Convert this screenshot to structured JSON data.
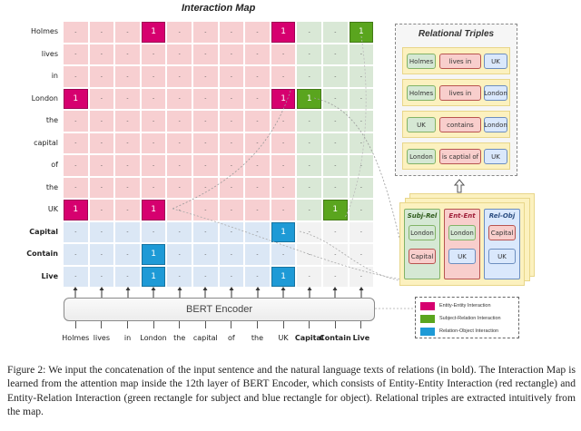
{
  "interaction_map": {
    "title": "Interaction Map",
    "row_labels": [
      "Holmes",
      "lives",
      "in",
      "London",
      "the",
      "capital",
      "of",
      "the",
      "UK",
      "Capital",
      "Contain",
      "Live"
    ],
    "row_bold": [
      false,
      false,
      false,
      false,
      false,
      false,
      false,
      false,
      false,
      true,
      true,
      true
    ],
    "col_labels": [
      "Holmes",
      "lives",
      "in",
      "London",
      "the",
      "capital",
      "of",
      "the",
      "UK",
      "Capital",
      "Contain",
      "Live"
    ],
    "col_bold": [
      false,
      false,
      false,
      false,
      false,
      false,
      false,
      false,
      false,
      true,
      true,
      true
    ],
    "empty_symbol": "-",
    "active_symbol": "1",
    "active_cells": [
      {
        "row": 0,
        "col": 3,
        "type": "entity-entity"
      },
      {
        "row": 0,
        "col": 8,
        "type": "entity-entity"
      },
      {
        "row": 0,
        "col": 11,
        "type": "subject-relation"
      },
      {
        "row": 3,
        "col": 0,
        "type": "entity-entity"
      },
      {
        "row": 3,
        "col": 8,
        "type": "entity-entity"
      },
      {
        "row": 3,
        "col": 9,
        "type": "subject-relation"
      },
      {
        "row": 8,
        "col": 0,
        "type": "entity-entity"
      },
      {
        "row": 8,
        "col": 3,
        "type": "entity-entity"
      },
      {
        "row": 8,
        "col": 10,
        "type": "subject-relation"
      },
      {
        "row": 9,
        "col": 8,
        "type": "relation-object"
      },
      {
        "row": 10,
        "col": 3,
        "type": "relation-object"
      },
      {
        "row": 11,
        "col": 3,
        "type": "relation-object"
      },
      {
        "row": 11,
        "col": 8,
        "type": "relation-object"
      }
    ]
  },
  "colors": {
    "entity_entity": "#d6006f",
    "subject_relation": "#5aa51e",
    "relation_object": "#1e9ad6",
    "bg_entity": "#f7cfd1",
    "bg_subject_rel": "#d9e8d6",
    "bg_rel_entity": "#dbe7f5",
    "bg_rel_rel": "#f2f2f2"
  },
  "encoder": {
    "label": "BERT Encoder",
    "tokens": [
      "Holmes",
      "lives",
      "in",
      "London",
      "the",
      "capital",
      "of",
      "the",
      "UK",
      "Capital",
      "Contain",
      "Live"
    ],
    "token_bold": [
      false,
      false,
      false,
      false,
      false,
      false,
      false,
      false,
      false,
      true,
      true,
      true
    ]
  },
  "relational_triples": {
    "title": "Relational Triples",
    "items": [
      {
        "subject": "Holmes",
        "relation": "lives in",
        "object": "UK"
      },
      {
        "subject": "Holmes",
        "relation": "lives in",
        "object": "London"
      },
      {
        "subject": "UK",
        "relation": "contains",
        "object": "London"
      },
      {
        "subject": "London",
        "relation": "is captial of",
        "object": "UK"
      }
    ]
  },
  "pairs_panel": {
    "columns": [
      {
        "header": "Subj-Rel",
        "items": [
          "London",
          "Capital"
        ]
      },
      {
        "header": "Ent-Ent",
        "items": [
          "London",
          "UK"
        ]
      },
      {
        "header": "Rel-Obj",
        "items": [
          "Capital",
          "UK"
        ]
      }
    ]
  },
  "legend": {
    "items": [
      {
        "label": "Entity-Entity Interaction",
        "color": "#d6006f"
      },
      {
        "label": "Subject-Relation Interaction",
        "color": "#5aa51e"
      },
      {
        "label": "Relation-Object Interaction",
        "color": "#1e9ad6"
      }
    ]
  },
  "caption": "Figure 2: We input the concatenation of the input sentence and the natural language texts of relations (in bold). The Interaction Map is learned from the attention map inside the 12th layer of BERT Encoder, which consists of Entity-Entity Interaction (red rectangle) and Entity-Relation Interaction (green rectangle for subject and blue rectangle for object). Relational triples are extracted intuitively from the map."
}
